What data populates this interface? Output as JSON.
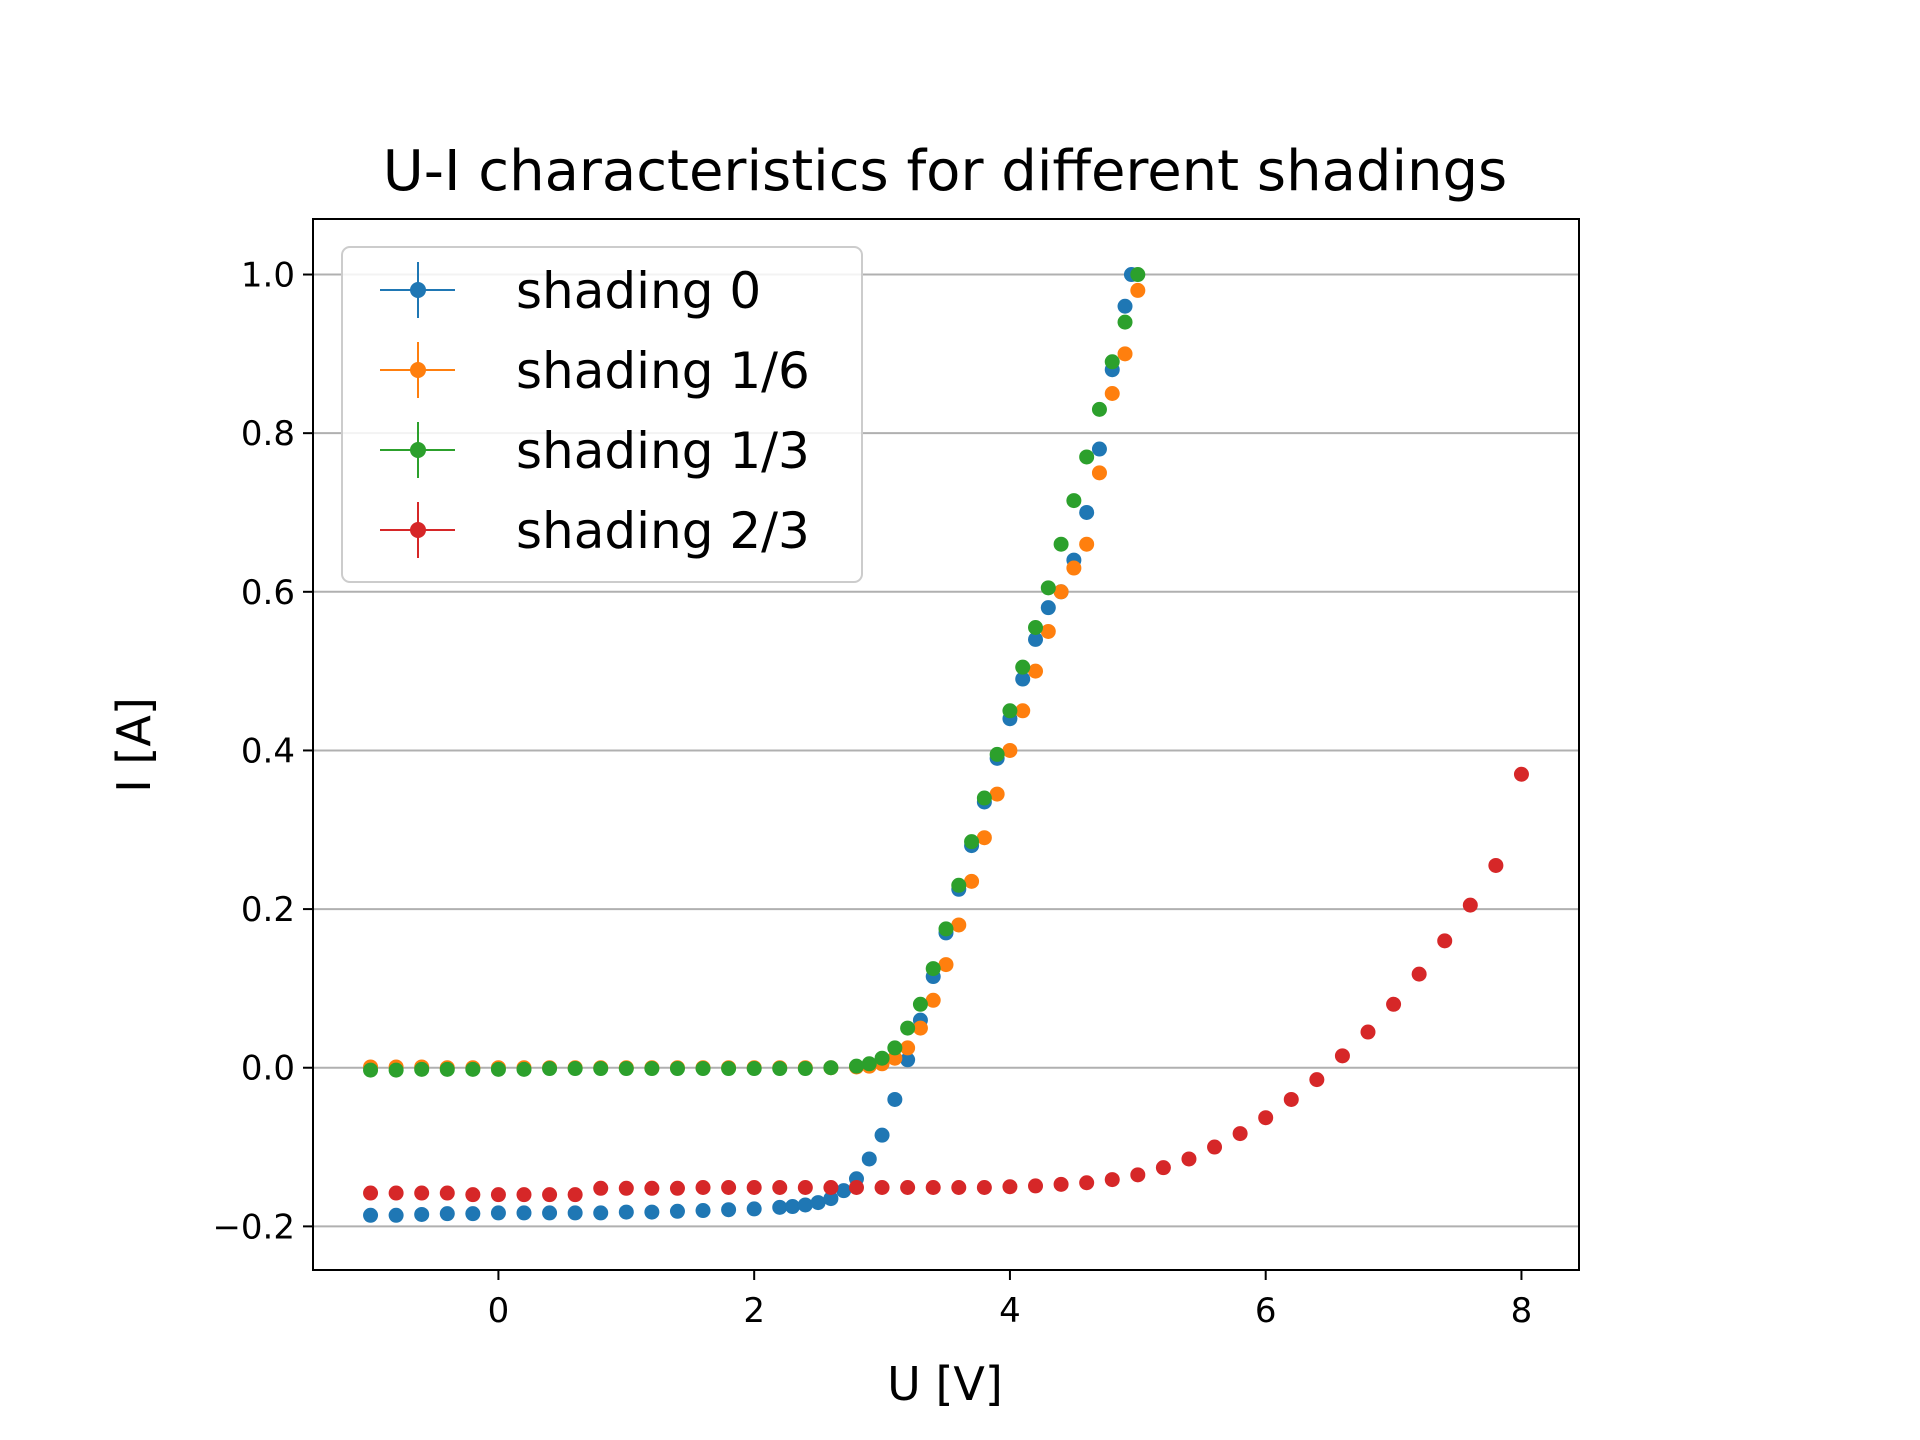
{
  "chart_data": {
    "type": "scatter",
    "title": "U-I characteristics for different shadings",
    "xlabel": "U [V]",
    "ylabel": "I [A]",
    "xlim": [
      -1.45,
      8.45
    ],
    "ylim": [
      -0.255,
      1.07
    ],
    "xticks": [
      0,
      2,
      4,
      6,
      8
    ],
    "yticks": [
      -0.2,
      0.0,
      0.2,
      0.4,
      0.6,
      0.8,
      1.0
    ],
    "xtick_labels": [
      "0",
      "2",
      "4",
      "6",
      "8"
    ],
    "ytick_labels": [
      "−0.2",
      "0.0",
      "0.2",
      "0.4",
      "0.6",
      "0.8",
      "1.0"
    ],
    "grid": "horizontal",
    "legend_position": "top-left",
    "series": [
      {
        "name": "shading 0",
        "color": "#1f77b4",
        "points": [
          [
            -1.0,
            -0.186
          ],
          [
            -0.8,
            -0.186
          ],
          [
            -0.6,
            -0.185
          ],
          [
            -0.4,
            -0.184
          ],
          [
            -0.2,
            -0.184
          ],
          [
            0.0,
            -0.183
          ],
          [
            0.2,
            -0.183
          ],
          [
            0.4,
            -0.183
          ],
          [
            0.6,
            -0.183
          ],
          [
            0.8,
            -0.183
          ],
          [
            1.0,
            -0.182
          ],
          [
            1.2,
            -0.182
          ],
          [
            1.4,
            -0.181
          ],
          [
            1.6,
            -0.18
          ],
          [
            1.8,
            -0.179
          ],
          [
            2.0,
            -0.178
          ],
          [
            2.2,
            -0.176
          ],
          [
            2.3,
            -0.175
          ],
          [
            2.4,
            -0.173
          ],
          [
            2.5,
            -0.17
          ],
          [
            2.6,
            -0.165
          ],
          [
            2.7,
            -0.155
          ],
          [
            2.8,
            -0.14
          ],
          [
            2.9,
            -0.115
          ],
          [
            3.0,
            -0.085
          ],
          [
            3.1,
            -0.04
          ],
          [
            3.2,
            0.01
          ],
          [
            3.3,
            0.06
          ],
          [
            3.4,
            0.115
          ],
          [
            3.5,
            0.17
          ],
          [
            3.6,
            0.225
          ],
          [
            3.7,
            0.28
          ],
          [
            3.8,
            0.335
          ],
          [
            3.9,
            0.39
          ],
          [
            4.0,
            0.44
          ],
          [
            4.1,
            0.49
          ],
          [
            4.2,
            0.54
          ],
          [
            4.3,
            0.58
          ],
          [
            4.4,
            0.6
          ],
          [
            4.5,
            0.64
          ],
          [
            4.6,
            0.7
          ],
          [
            4.7,
            0.78
          ],
          [
            4.8,
            0.88
          ],
          [
            4.9,
            0.96
          ],
          [
            4.95,
            1.0
          ]
        ]
      },
      {
        "name": "shading 1/6",
        "color": "#ff7f0e",
        "points": [
          [
            -1.0,
            0.001
          ],
          [
            -0.8,
            0.001
          ],
          [
            -0.6,
            0.001
          ],
          [
            -0.4,
            0.0
          ],
          [
            -0.2,
            0.0
          ],
          [
            0.0,
            0.0
          ],
          [
            0.2,
            0.0
          ],
          [
            0.4,
            0.0
          ],
          [
            0.6,
            0.0
          ],
          [
            0.8,
            0.0
          ],
          [
            1.0,
            0.0
          ],
          [
            1.2,
            0.0
          ],
          [
            1.4,
            0.0
          ],
          [
            1.6,
            0.0
          ],
          [
            1.8,
            0.0
          ],
          [
            2.0,
            0.0
          ],
          [
            2.2,
            0.0
          ],
          [
            2.4,
            0.0
          ],
          [
            2.6,
            0.0
          ],
          [
            2.8,
            0.001
          ],
          [
            2.9,
            0.002
          ],
          [
            3.0,
            0.005
          ],
          [
            3.1,
            0.012
          ],
          [
            3.2,
            0.025
          ],
          [
            3.3,
            0.05
          ],
          [
            3.4,
            0.085
          ],
          [
            3.5,
            0.13
          ],
          [
            3.6,
            0.18
          ],
          [
            3.7,
            0.235
          ],
          [
            3.8,
            0.29
          ],
          [
            3.9,
            0.345
          ],
          [
            4.0,
            0.4
          ],
          [
            4.1,
            0.45
          ],
          [
            4.2,
            0.5
          ],
          [
            4.3,
            0.55
          ],
          [
            4.4,
            0.6
          ],
          [
            4.5,
            0.63
          ],
          [
            4.6,
            0.66
          ],
          [
            4.7,
            0.75
          ],
          [
            4.8,
            0.85
          ],
          [
            4.9,
            0.9
          ],
          [
            5.0,
            0.98
          ]
        ]
      },
      {
        "name": "shading 1/3",
        "color": "#2ca02c",
        "points": [
          [
            -1.0,
            -0.003
          ],
          [
            -0.8,
            -0.003
          ],
          [
            -0.6,
            -0.002
          ],
          [
            -0.4,
            -0.002
          ],
          [
            -0.2,
            -0.002
          ],
          [
            0.0,
            -0.002
          ],
          [
            0.2,
            -0.002
          ],
          [
            0.4,
            -0.001
          ],
          [
            0.6,
            -0.001
          ],
          [
            0.8,
            -0.001
          ],
          [
            1.0,
            -0.001
          ],
          [
            1.2,
            -0.001
          ],
          [
            1.4,
            -0.001
          ],
          [
            1.6,
            -0.001
          ],
          [
            1.8,
            -0.001
          ],
          [
            2.0,
            -0.001
          ],
          [
            2.2,
            -0.001
          ],
          [
            2.4,
            -0.001
          ],
          [
            2.6,
            0.0
          ],
          [
            2.8,
            0.002
          ],
          [
            2.9,
            0.005
          ],
          [
            3.0,
            0.012
          ],
          [
            3.1,
            0.025
          ],
          [
            3.2,
            0.05
          ],
          [
            3.3,
            0.08
          ],
          [
            3.4,
            0.125
          ],
          [
            3.5,
            0.175
          ],
          [
            3.6,
            0.23
          ],
          [
            3.7,
            0.285
          ],
          [
            3.8,
            0.34
          ],
          [
            3.9,
            0.395
          ],
          [
            4.0,
            0.45
          ],
          [
            4.1,
            0.505
          ],
          [
            4.2,
            0.555
          ],
          [
            4.3,
            0.605
          ],
          [
            4.4,
            0.66
          ],
          [
            4.5,
            0.715
          ],
          [
            4.6,
            0.77
          ],
          [
            4.7,
            0.83
          ],
          [
            4.8,
            0.89
          ],
          [
            4.9,
            0.94
          ],
          [
            5.0,
            1.0
          ]
        ]
      },
      {
        "name": "shading 2/3",
        "color": "#d62728",
        "points": [
          [
            -1.0,
            -0.158
          ],
          [
            -0.8,
            -0.158
          ],
          [
            -0.6,
            -0.158
          ],
          [
            -0.4,
            -0.158
          ],
          [
            -0.2,
            -0.16
          ],
          [
            0.0,
            -0.16
          ],
          [
            0.2,
            -0.16
          ],
          [
            0.4,
            -0.16
          ],
          [
            0.6,
            -0.16
          ],
          [
            0.8,
            -0.152
          ],
          [
            1.0,
            -0.152
          ],
          [
            1.2,
            -0.152
          ],
          [
            1.4,
            -0.152
          ],
          [
            1.6,
            -0.151
          ],
          [
            1.8,
            -0.151
          ],
          [
            2.0,
            -0.151
          ],
          [
            2.2,
            -0.151
          ],
          [
            2.4,
            -0.151
          ],
          [
            2.6,
            -0.151
          ],
          [
            2.8,
            -0.151
          ],
          [
            3.0,
            -0.151
          ],
          [
            3.2,
            -0.151
          ],
          [
            3.4,
            -0.151
          ],
          [
            3.6,
            -0.151
          ],
          [
            3.8,
            -0.151
          ],
          [
            4.0,
            -0.15
          ],
          [
            4.2,
            -0.149
          ],
          [
            4.4,
            -0.147
          ],
          [
            4.6,
            -0.145
          ],
          [
            4.8,
            -0.141
          ],
          [
            5.0,
            -0.135
          ],
          [
            5.2,
            -0.126
          ],
          [
            5.4,
            -0.115
          ],
          [
            5.6,
            -0.1
          ],
          [
            5.8,
            -0.083
          ],
          [
            6.0,
            -0.063
          ],
          [
            6.2,
            -0.04
          ],
          [
            6.4,
            -0.015
          ],
          [
            6.6,
            0.015
          ],
          [
            6.8,
            0.045
          ],
          [
            7.0,
            0.08
          ],
          [
            7.2,
            0.118
          ],
          [
            7.4,
            0.16
          ],
          [
            7.6,
            0.205
          ],
          [
            7.8,
            0.255
          ],
          [
            8.0,
            0.37
          ]
        ]
      }
    ]
  }
}
